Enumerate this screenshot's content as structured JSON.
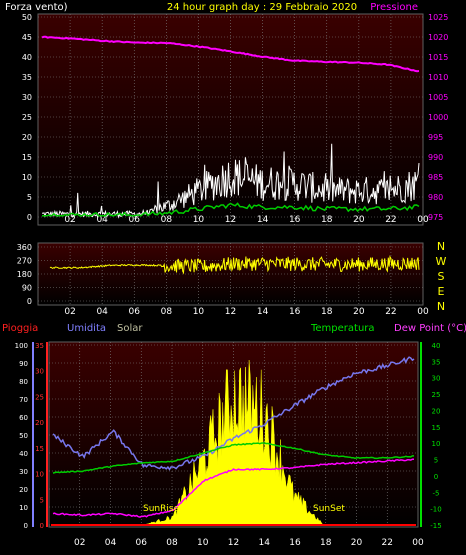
{
  "panel1": {
    "left_title": "Forza vento)",
    "center_title": "24 hour graph day : 29 Febbraio 2020",
    "right_title": "Pressione",
    "left_ticks": [
      "50",
      "45",
      "40",
      "35",
      "30",
      "25",
      "20",
      "15",
      "10",
      "5",
      "0"
    ],
    "right_ticks": [
      "1025",
      "1020",
      "1015",
      "1010",
      "1005",
      "1000",
      "995",
      "990",
      "985",
      "980",
      "975"
    ],
    "x_ticks": [
      "02",
      "04",
      "06",
      "08",
      "10",
      "12",
      "14",
      "16",
      "18",
      "20",
      "22",
      "00"
    ]
  },
  "panel2": {
    "left_ticks": [
      "360",
      "270",
      "180",
      "90",
      "0"
    ],
    "compass": [
      "N",
      "W",
      "S",
      "E",
      "N"
    ],
    "x_ticks": [
      "02",
      "04",
      "06",
      "08",
      "10",
      "12",
      "14",
      "16",
      "18",
      "20",
      "22",
      "00"
    ]
  },
  "panel3": {
    "legend_rain": "Pioggia",
    "legend_humidity": "Umidita",
    "legend_solar": "Solar",
    "legend_temperature": "Temperatura",
    "legend_dewpoint": "Dew Point (°C)",
    "hum_ticks": [
      "100",
      "90",
      "80",
      "70",
      "60",
      "50",
      "40",
      "30",
      "20",
      "10",
      "0"
    ],
    "rain_ticks": [
      "35",
      "30",
      "25",
      "20",
      "15",
      "10",
      "5",
      "0"
    ],
    "temp_ticks": [
      "40",
      "35",
      "30",
      "25",
      "20",
      "15",
      "10",
      "5",
      "0",
      "-5",
      "-10",
      "-15"
    ],
    "x_ticks": [
      "02",
      "04",
      "06",
      "08",
      "10",
      "12",
      "14",
      "16",
      "18",
      "20",
      "22",
      "00"
    ],
    "sunrise_label": "SunRise",
    "sunset_label": "SunSet"
  },
  "colors": {
    "wind": "#ffffff",
    "gust": "#ffffff",
    "wind_avg": "#00cc00",
    "pressure": "#ff00ff",
    "direction": "#ffff00",
    "rain": "#ff0000",
    "humidity": "#7777ee",
    "solar": "#ffff00",
    "temperature": "#00cc00",
    "dewpoint": "#ff00ff",
    "panel_bg_top": "#3a0000",
    "panel_bg_bottom": "#000000",
    "grid": "#808080"
  },
  "chart_data": [
    {
      "type": "line",
      "title": "24 hour graph day : 29 Febbraio 2020",
      "x": [
        "00",
        "02",
        "04",
        "06",
        "08",
        "10",
        "12",
        "14",
        "16",
        "18",
        "20",
        "22",
        "00"
      ],
      "series": [
        {
          "name": "Pressione",
          "axis": "right",
          "values": [
            1020.0,
            1019.6,
            1019.0,
            1018.6,
            1018.5,
            1017.6,
            1016.4,
            1015.1,
            1014.1,
            1013.8,
            1013.6,
            1013.1,
            1011.4
          ]
        },
        {
          "name": "Forza vento",
          "axis": "left",
          "values": [
            1,
            1,
            1,
            1,
            2,
            4,
            6,
            5,
            5,
            4,
            4,
            4,
            5
          ]
        }
      ],
      "ylim_left": [
        0,
        50
      ],
      "ylim_right": [
        975,
        1025
      ]
    },
    {
      "type": "line",
      "x": [
        "00",
        "02",
        "04",
        "06",
        "08",
        "10",
        "12",
        "14",
        "16",
        "18",
        "20",
        "22",
        "00"
      ],
      "series": [
        {
          "name": "direction",
          "values": [
            222,
            222,
            238,
            240,
            235,
            230,
            248,
            250,
            246,
            244,
            244,
            248,
            252
          ]
        }
      ],
      "ylim": [
        0,
        360
      ]
    },
    {
      "type": "line",
      "x": [
        "00",
        "02",
        "04",
        "06",
        "08",
        "10",
        "12",
        "14",
        "16",
        "18",
        "20",
        "22",
        "00"
      ],
      "series": [
        {
          "name": "Umidita",
          "axis": "humidity",
          "values": [
            50,
            38,
            52,
            33,
            32,
            38,
            48,
            56,
            66,
            76,
            84,
            88,
            93
          ]
        },
        {
          "name": "Temperatura",
          "axis": "temperature",
          "values": [
            1.0,
            1.5,
            3.0,
            4.0,
            4.5,
            7.0,
            9.5,
            10.0,
            8.5,
            6.5,
            5.5,
            5.5,
            6.0
          ]
        },
        {
          "name": "Dew Point (°C)",
          "axis": "temperature",
          "values": [
            -11.5,
            -12.0,
            -11.5,
            -12.5,
            -10.5,
            -1.5,
            2.0,
            2.0,
            2.5,
            3.5,
            4.0,
            4.5,
            5.0
          ]
        },
        {
          "name": "Pioggia",
          "axis": "rain",
          "values": [
            0,
            0,
            0,
            0,
            0,
            0,
            0,
            0,
            0,
            0,
            0,
            0,
            0
          ]
        },
        {
          "name": "Solar",
          "axis": "solar",
          "values": [
            0,
            0,
            0,
            0,
            5,
            40,
            80,
            70,
            18,
            0,
            0,
            0,
            0
          ]
        }
      ],
      "ylim_humidity": [
        0,
        100
      ],
      "ylim_rain": [
        0,
        35
      ],
      "ylim_temperature": [
        -15,
        40
      ]
    }
  ]
}
